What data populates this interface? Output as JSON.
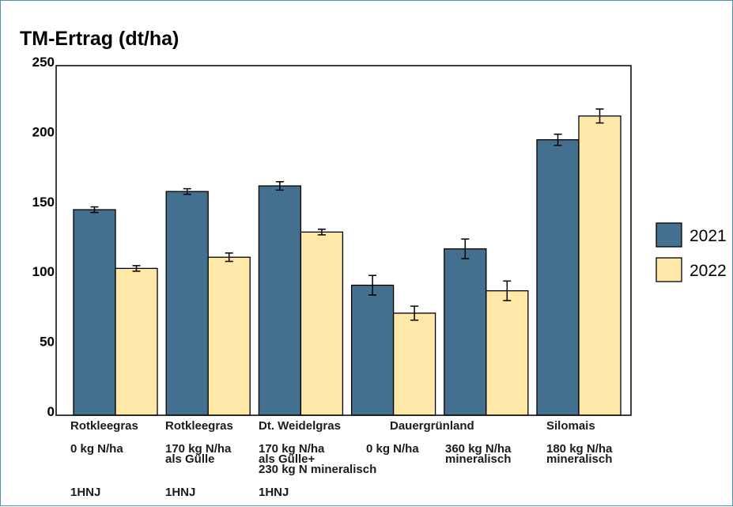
{
  "colors": {
    "s2021": "#44708f",
    "s2022": "#ffe8a8",
    "stroke": "#000000"
  },
  "chart_data": {
    "type": "bar",
    "title": "TM-Ertrag (dt/ha)",
    "xlabel": "",
    "ylabel": "",
    "ylim": [
      0,
      250
    ],
    "yticks": [
      "0",
      "50",
      "100",
      "150",
      "200",
      "250"
    ],
    "legend_position": "right",
    "categories": [
      {
        "label": "Rotkleegras",
        "sub": [
          "0 kg N/ha"
        ],
        "note": "1HNJ"
      },
      {
        "label": "Rotkleegras",
        "sub": [
          "170 kg N/ha",
          "als Gülle"
        ],
        "note": "1HNJ"
      },
      {
        "label": "Dt. Weidelgras",
        "sub": [
          "170 kg N/ha",
          "als Gülle+",
          "230 kg N mineralisch"
        ],
        "note": "1HNJ"
      },
      {
        "label": "Dauergrünland",
        "sub": [
          "0 kg N/ha"
        ],
        "note": ""
      },
      {
        "label": "",
        "sub": [
          "360 kg N/ha",
          "mineralisch"
        ],
        "note": ""
      },
      {
        "label": "Silomais",
        "sub": [
          "180 kg N/ha",
          "mineralisch"
        ],
        "note": ""
      }
    ],
    "series": [
      {
        "name": "2021",
        "values": [
          147,
          160,
          164,
          93,
          119,
          197
        ],
        "errors": [
          2,
          2,
          3,
          7,
          7,
          4
        ]
      },
      {
        "name": "2022",
        "values": [
          105,
          113,
          131,
          73,
          89,
          214
        ],
        "errors": [
          2,
          3,
          2,
          5,
          7,
          5
        ]
      }
    ]
  }
}
